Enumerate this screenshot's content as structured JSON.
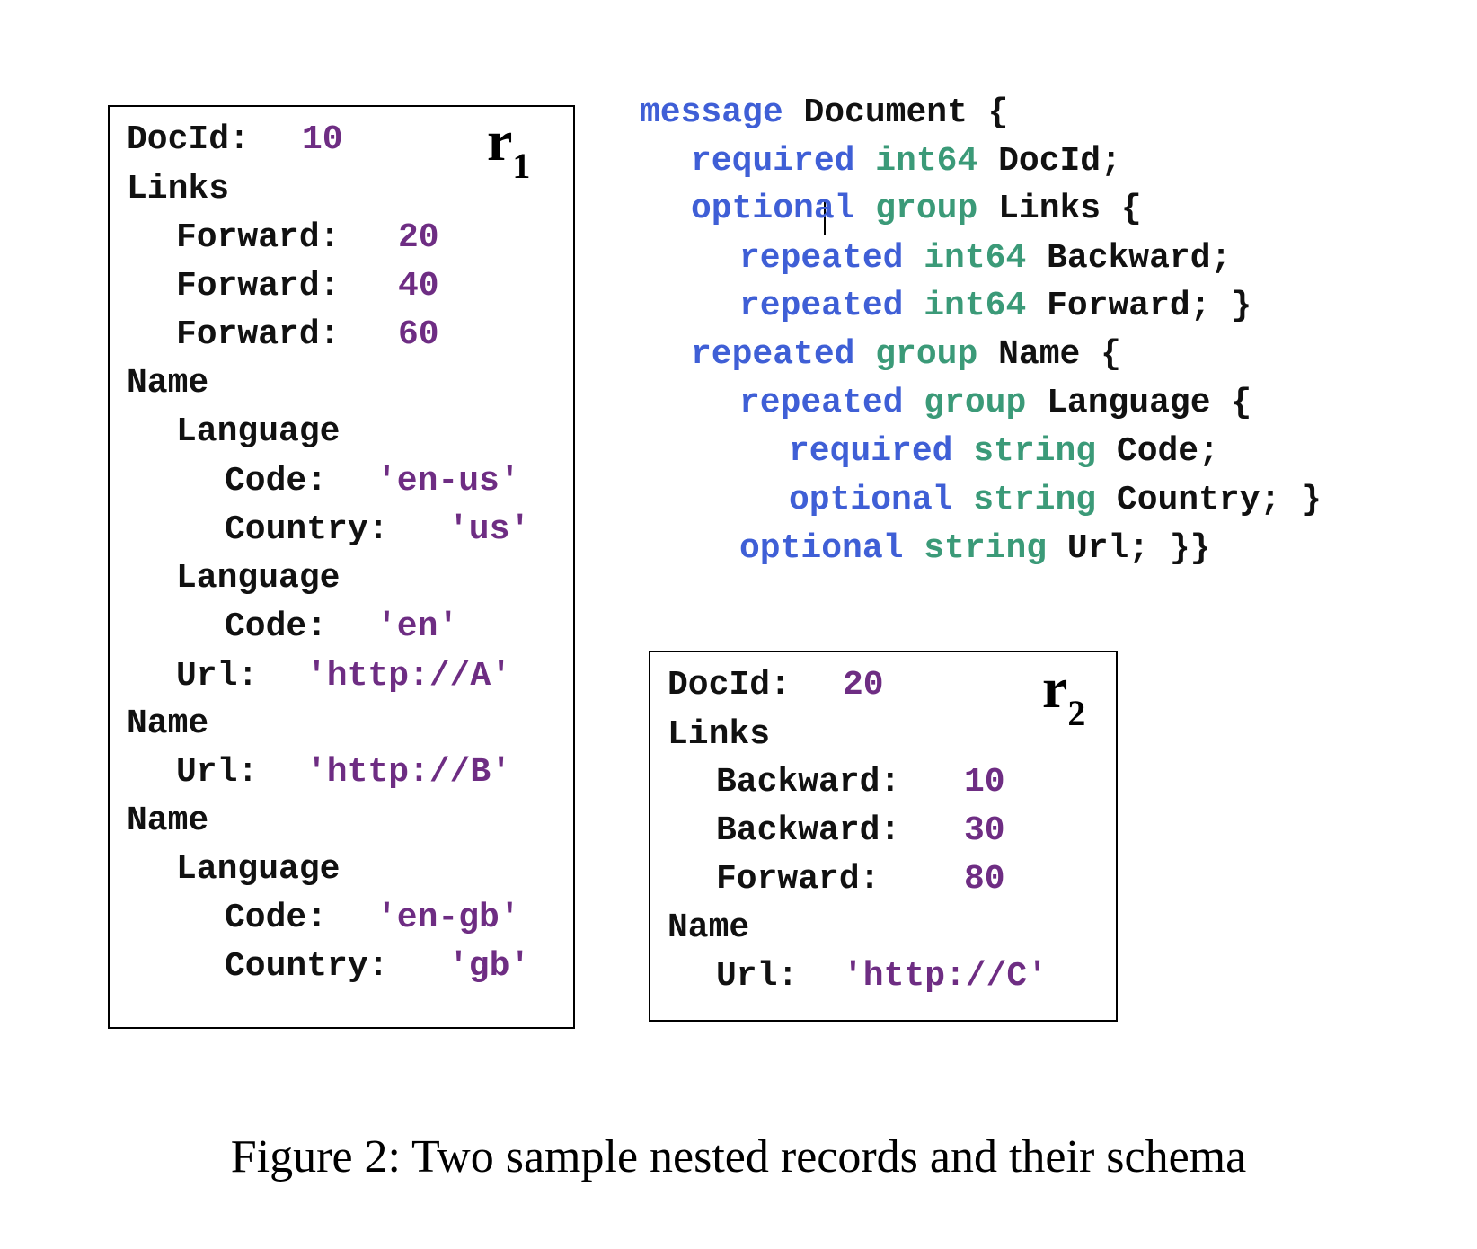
{
  "figure": {
    "caption": "Figure 2: Two sample nested records and their schema",
    "colors": {
      "value": "#6e2d83",
      "keyword": "#3f5fd6",
      "type": "#3b9a78",
      "text": "#111111"
    }
  },
  "r1": {
    "label": "r",
    "label_sub": "1",
    "lines": [
      {
        "key": "DocId:",
        "value": "10"
      },
      {
        "key": "Links",
        "value": ""
      },
      {
        "key": "Forward:",
        "value": "20"
      },
      {
        "key": "Forward:",
        "value": "40"
      },
      {
        "key": "Forward:",
        "value": "60"
      },
      {
        "key": "Name",
        "value": ""
      },
      {
        "key": "Language",
        "value": ""
      },
      {
        "key": "Code:",
        "value": "'en-us'"
      },
      {
        "key": "Country:",
        "value": "'us'"
      },
      {
        "key": "Language",
        "value": ""
      },
      {
        "key": "Code:",
        "value": "'en'"
      },
      {
        "key": "Url:",
        "value": "'http://A'"
      },
      {
        "key": "Name",
        "value": ""
      },
      {
        "key": "Url:",
        "value": "'http://B'"
      },
      {
        "key": "Name",
        "value": ""
      },
      {
        "key": "Language",
        "value": ""
      },
      {
        "key": "Code:",
        "value": "'en-gb'"
      },
      {
        "key": "Country:",
        "value": "'gb'"
      }
    ]
  },
  "r2": {
    "label": "r",
    "label_sub": "2",
    "lines": [
      {
        "key": "DocId:",
        "value": "20"
      },
      {
        "key": "Links",
        "value": ""
      },
      {
        "key": "Backward:",
        "value": "10"
      },
      {
        "key": "Backward:",
        "value": "30"
      },
      {
        "key": "Forward:",
        "value": "80"
      },
      {
        "key": "Name",
        "value": ""
      },
      {
        "key": "Url:",
        "value": "'http://C'"
      }
    ]
  },
  "schema": {
    "lines": [
      {
        "kw": "message",
        "type": "",
        "name": "Document {"
      },
      {
        "kw": "required",
        "type": "int64",
        "name": "DocId;"
      },
      {
        "kw": "optional",
        "type": "group",
        "name": "Links {"
      },
      {
        "kw": "repeated",
        "type": "int64",
        "name": "Backward;"
      },
      {
        "kw": "repeated",
        "type": "int64",
        "name": "Forward; }"
      },
      {
        "kw": "repeated",
        "type": "group",
        "name": "Name {"
      },
      {
        "kw": "repeated",
        "type": "group",
        "name": "Language {"
      },
      {
        "kw": "required",
        "type": "string",
        "name": "Code;"
      },
      {
        "kw": "optional",
        "type": "string",
        "name": "Country; }"
      },
      {
        "kw": "optional",
        "type": "string",
        "name": "Url; }}"
      }
    ]
  }
}
